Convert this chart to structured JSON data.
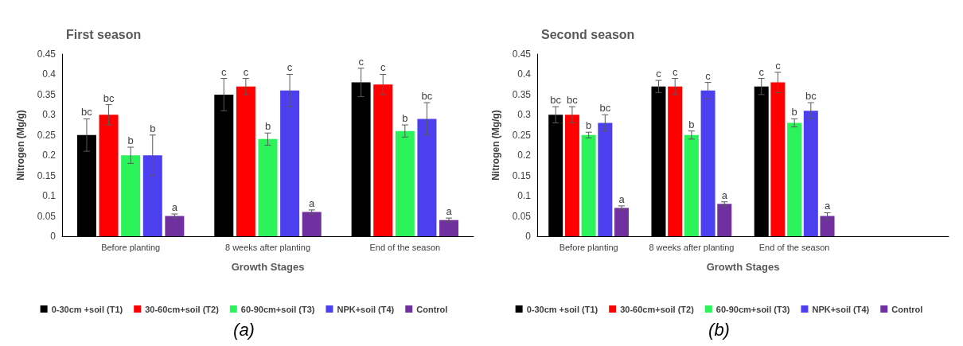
{
  "chart_data": [
    {
      "type": "bar",
      "title": "First season",
      "xlabel": "Growth Stages",
      "ylabel": "Nitrogen (Mg/g)",
      "categories": [
        "Before planting",
        "8 weeks after planting",
        "End of the season"
      ],
      "ylim": [
        0,
        0.45
      ],
      "yticks": [
        0,
        0.05,
        0.1,
        0.15,
        0.2,
        0.25,
        0.3,
        0.35,
        0.4,
        0.45
      ],
      "grid": false,
      "legend": "bottom",
      "annotations": [
        "(a)"
      ],
      "series": [
        {
          "name": "0-30cm +soil (T1)",
          "color": "#000000",
          "values": [
            0.25,
            0.35,
            0.38
          ],
          "errors": [
            0.04,
            0.04,
            0.035
          ],
          "value_labels": [
            "bc",
            "c",
            "c"
          ]
        },
        {
          "name": "30-60cm+soil (T2)",
          "color": "#ff0000",
          "values": [
            0.3,
            0.37,
            0.375
          ],
          "errors": [
            0.025,
            0.02,
            0.025
          ],
          "value_labels": [
            "bc",
            "c",
            "c"
          ]
        },
        {
          "name": "60-90cm+soil (T3)",
          "color": "#2cf35a",
          "values": [
            0.2,
            0.24,
            0.26
          ],
          "errors": [
            0.02,
            0.015,
            0.015
          ],
          "value_labels": [
            "b",
            "b",
            "b"
          ]
        },
        {
          "name": "NPK+soil (T4)",
          "color": "#4b3fef",
          "values": [
            0.2,
            0.36,
            0.29
          ],
          "errors": [
            0.05,
            0.04,
            0.04
          ],
          "value_labels": [
            "b",
            "c",
            "bc"
          ]
        },
        {
          "name": "Control",
          "color": "#7030a0",
          "values": [
            0.05,
            0.06,
            0.04
          ],
          "errors": [
            0.005,
            0.005,
            0.005
          ],
          "value_labels": [
            "a",
            "a",
            "a"
          ]
        }
      ]
    },
    {
      "type": "bar",
      "title": "Second season",
      "xlabel": "Growth Stages",
      "ylabel": "Nitrogen (Mg/g)",
      "categories": [
        "Before planting",
        "8 weeks after planting",
        "End of the season",
        null
      ],
      "ylim": [
        0,
        0.45
      ],
      "yticks": [
        0,
        0.05,
        0.1,
        0.15,
        0.2,
        0.25,
        0.3,
        0.35,
        0.4,
        0.45
      ],
      "grid": false,
      "legend": "bottom",
      "annotations": [
        "(b)"
      ],
      "series": [
        {
          "name": "0-30cm +soil (T1)",
          "color": "#000000",
          "values": [
            0.3,
            0.37,
            0.37,
            null
          ],
          "errors": [
            0.02,
            0.015,
            0.02,
            null
          ],
          "value_labels": [
            "bc",
            "c",
            "c",
            null
          ]
        },
        {
          "name": "30-60cm+soil (T2)",
          "color": "#ff0000",
          "values": [
            0.3,
            0.37,
            0.38,
            null
          ],
          "errors": [
            0.02,
            0.02,
            0.025,
            null
          ],
          "value_labels": [
            "bc",
            "c",
            "c",
            null
          ]
        },
        {
          "name": "60-90cm+soil (T3)",
          "color": "#2cf35a",
          "values": [
            0.25,
            0.25,
            0.28,
            null
          ],
          "errors": [
            0.007,
            0.01,
            0.01,
            null
          ],
          "value_labels": [
            "b",
            "b",
            "b",
            null
          ]
        },
        {
          "name": "NPK+soil (T4)",
          "color": "#4b3fef",
          "values": [
            0.28,
            0.36,
            0.31,
            null
          ],
          "errors": [
            0.02,
            0.02,
            0.02,
            null
          ],
          "value_labels": [
            "bc",
            "c",
            "bc",
            null
          ]
        },
        {
          "name": "Control",
          "color": "#7030a0",
          "values": [
            0.07,
            0.08,
            0.05,
            null
          ],
          "errors": [
            0.005,
            0.005,
            0.008,
            null
          ],
          "value_labels": [
            "a",
            "a",
            "a",
            null
          ]
        }
      ]
    }
  ]
}
